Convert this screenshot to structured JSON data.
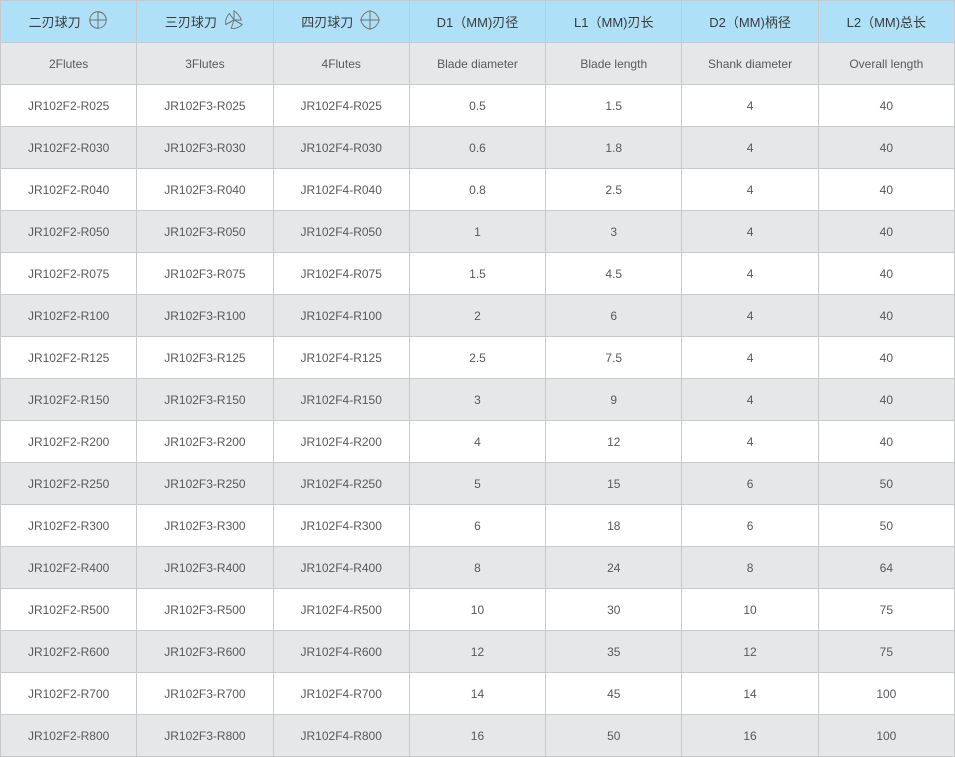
{
  "table": {
    "header_bg": "#aee0f7",
    "subheader_bg": "#e6e7e8",
    "row_alt_bg": "#e6e7e8",
    "row_bg": "#ffffff",
    "border_color": "#c8c9cb",
    "text_color": "#58595b",
    "columns": [
      {
        "title": "二刃球刀",
        "sub": "2Flutes",
        "icon": "flute2"
      },
      {
        "title": "三刃球刀",
        "sub": "3Flutes",
        "icon": "flute3"
      },
      {
        "title": "四刃球刀",
        "sub": "4Flutes",
        "icon": "flute4"
      },
      {
        "title": "D1（MM)刃径",
        "sub": "Blade diameter",
        "icon": null
      },
      {
        "title": "L1（MM)刃长",
        "sub": "Blade length",
        "icon": null
      },
      {
        "title": "D2（MM)柄径",
        "sub": "Shank diameter",
        "icon": null
      },
      {
        "title": "L2（MM)总长",
        "sub": "Overall length",
        "icon": null
      }
    ],
    "rows": [
      [
        "JR102F2-R025",
        "JR102F3-R025",
        "JR102F4-R025",
        "0.5",
        "1.5",
        "4",
        "40"
      ],
      [
        "JR102F2-R030",
        "JR102F3-R030",
        "JR102F4-R030",
        "0.6",
        "1.8",
        "4",
        "40"
      ],
      [
        "JR102F2-R040",
        "JR102F3-R040",
        "JR102F4-R040",
        "0.8",
        "2.5",
        "4",
        "40"
      ],
      [
        "JR102F2-R050",
        "JR102F3-R050",
        "JR102F4-R050",
        "1",
        "3",
        "4",
        "40"
      ],
      [
        "JR102F2-R075",
        "JR102F3-R075",
        "JR102F4-R075",
        "1.5",
        "4.5",
        "4",
        "40"
      ],
      [
        "JR102F2-R100",
        "JR102F3-R100",
        "JR102F4-R100",
        "2",
        "6",
        "4",
        "40"
      ],
      [
        "JR102F2-R125",
        "JR102F3-R125",
        "JR102F4-R125",
        "2.5",
        "7.5",
        "4",
        "40"
      ],
      [
        "JR102F2-R150",
        "JR102F3-R150",
        "JR102F4-R150",
        "3",
        "9",
        "4",
        "40"
      ],
      [
        "JR102F2-R200",
        "JR102F3-R200",
        "JR102F4-R200",
        "4",
        "12",
        "4",
        "40"
      ],
      [
        "JR102F2-R250",
        "JR102F3-R250",
        "JR102F4-R250",
        "5",
        "15",
        "6",
        "50"
      ],
      [
        "JR102F2-R300",
        "JR102F3-R300",
        "JR102F4-R300",
        "6",
        "18",
        "6",
        "50"
      ],
      [
        "JR102F2-R400",
        "JR102F3-R400",
        "JR102F4-R400",
        "8",
        "24",
        "8",
        "64"
      ],
      [
        "JR102F2-R500",
        "JR102F3-R500",
        "JR102F4-R500",
        "10",
        "30",
        "10",
        "75"
      ],
      [
        "JR102F2-R600",
        "JR102F3-R600",
        "JR102F4-R600",
        "12",
        "35",
        "12",
        "75"
      ],
      [
        "JR102F2-R700",
        "JR102F3-R700",
        "JR102F4-R700",
        "14",
        "45",
        "14",
        "100"
      ],
      [
        "JR102F2-R800",
        "JR102F3-R800",
        "JR102F4-R800",
        "16",
        "50",
        "16",
        "100"
      ]
    ]
  }
}
